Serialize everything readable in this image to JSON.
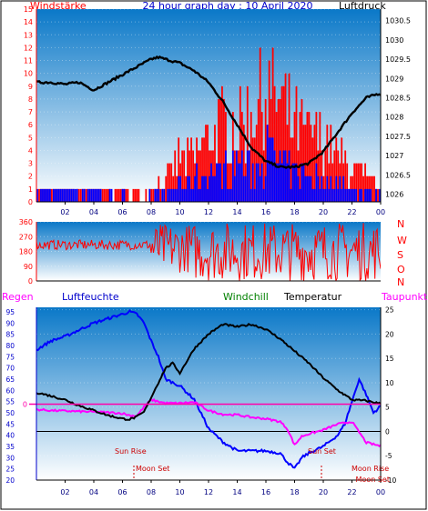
{
  "header": {
    "title": "24 hour graph day : 10 April 2020",
    "left_label": "Windstärke",
    "right_label": "Luftdruck"
  },
  "direction_labels": [
    "N",
    "W",
    "S",
    "O",
    "N"
  ],
  "legend": {
    "regen": "Regen",
    "luftfeuchte": "Luftfeuchte",
    "windchill": "Windchill",
    "temperatur": "Temperatur",
    "taupunkt": "Taupunkt"
  },
  "events": {
    "sun_rise": "Sun Rise",
    "sun_set": "Sun Set",
    "moon_set_1": "Moon Set",
    "moon_rise": "Moon Rise",
    "moon_set_2": "Moon Set"
  },
  "colors": {
    "wind_bar": "#ff0000",
    "gust_bar": "#0000ff",
    "pressure": "#000000",
    "humidity": "#0000ff",
    "temperature": "#000000",
    "dewpoint": "#ff00ff",
    "rain": "#ff0000",
    "bg_top": "#0a78c8",
    "bg_bottom": "#ffffff"
  },
  "chart_data": [
    {
      "type": "bar",
      "name": "wind-pressure",
      "x_ticks": [
        "02",
        "04",
        "06",
        "08",
        "10",
        "12",
        "14",
        "16",
        "18",
        "20",
        "22",
        "00"
      ],
      "xlim": [
        0,
        24
      ],
      "wind_ticks_left": [
        0,
        1,
        2,
        3,
        4,
        5,
        6,
        7,
        8,
        9,
        10,
        11,
        12,
        13,
        14,
        15
      ],
      "ylim_left": [
        0,
        15
      ],
      "pressure_ticks_right": [
        "1026",
        "1026.5",
        "1027",
        "1027.5",
        "1028",
        "1028.5",
        "1029",
        "1029.5",
        "1030",
        "1030.5"
      ],
      "ylim_right": [
        1025.8,
        1030.8
      ],
      "series": [
        {
          "name": "Luftdruck",
          "x": [
            0,
            1,
            2,
            3,
            4,
            5,
            6,
            7,
            8,
            8.5,
            9,
            10,
            11,
            12,
            13,
            14,
            15,
            16,
            17,
            18,
            19,
            20,
            21,
            22,
            23,
            23.8
          ],
          "values": [
            1028.9,
            1028.9,
            1028.85,
            1028.9,
            1028.7,
            1028.9,
            1029.1,
            1029.3,
            1029.5,
            1029.55,
            1029.5,
            1029.4,
            1029.2,
            1028.9,
            1028.4,
            1027.8,
            1027.2,
            1026.85,
            1026.7,
            1026.7,
            1026.8,
            1027.1,
            1027.6,
            1028.1,
            1028.5,
            1028.6
          ]
        }
      ]
    },
    {
      "type": "line",
      "name": "wind-direction",
      "x_ticks": [],
      "y_ticks": [
        0,
        90,
        180,
        270,
        360
      ],
      "ylim": [
        0,
        360
      ]
    },
    {
      "type": "line",
      "name": "humidity-temperature",
      "x_ticks": [
        "02",
        "04",
        "06",
        "08",
        "10",
        "12",
        "14",
        "16",
        "18",
        "20",
        "22",
        "00"
      ],
      "xlim": [
        0,
        24
      ],
      "humidity_ticks_left": [
        20,
        25,
        30,
        35,
        40,
        45,
        50,
        55,
        60,
        65,
        70,
        75,
        80,
        85,
        90,
        95
      ],
      "ylim_left": [
        20,
        97
      ],
      "temp_ticks_right": [
        -10,
        -5,
        0,
        5,
        10,
        15,
        20,
        25
      ],
      "ylim_right": [
        -10,
        25.5
      ],
      "series": [
        {
          "name": "Luftfeuchte",
          "x": [
            0,
            1,
            2,
            3,
            4,
            5,
            6,
            6.5,
            7,
            7.5,
            8,
            8.5,
            9,
            10,
            11,
            12,
            13,
            14,
            15,
            16,
            17,
            17.5,
            18,
            18.5,
            19,
            20,
            21,
            21.5,
            22,
            22.5,
            23,
            23.5,
            24
          ],
          "values": [
            78,
            82,
            84,
            87,
            90,
            92,
            94,
            95,
            94,
            90,
            82,
            75,
            65,
            62,
            56,
            43,
            37,
            33,
            33,
            33,
            32,
            28,
            25,
            30,
            32,
            35,
            40,
            45,
            55,
            65,
            58,
            50,
            53
          ]
        },
        {
          "name": "Temperatur",
          "x": [
            0,
            1,
            2,
            3,
            4,
            5,
            6,
            6.5,
            7,
            7.5,
            8,
            8.5,
            9,
            9.5,
            10,
            11,
            12,
            13,
            14,
            15,
            16,
            17,
            18,
            19,
            20,
            21,
            22,
            23,
            24
          ],
          "values": [
            8,
            7.3,
            6.5,
            5.3,
            4.3,
            3.3,
            2.6,
            2.5,
            3,
            4,
            7,
            10,
            13,
            14,
            12,
            17,
            20,
            22,
            21.5,
            22,
            21,
            19,
            16.5,
            14,
            11,
            8.5,
            6.5,
            6.3,
            5.7
          ]
        },
        {
          "name": "Taupunkt",
          "x": [
            0,
            1,
            2,
            3,
            4,
            5,
            6,
            6.5,
            7,
            7.5,
            8,
            9,
            10,
            11,
            12,
            13,
            14,
            15,
            16,
            17,
            17.5,
            18,
            18.5,
            19,
            20,
            21,
            22,
            23,
            24
          ],
          "values": [
            4.5,
            4.3,
            4.2,
            4.1,
            4,
            3.9,
            3.7,
            3.3,
            3.2,
            5,
            6.5,
            5.8,
            5.8,
            6,
            4.3,
            3.5,
            3.4,
            2.9,
            2.6,
            2,
            0.5,
            -2.8,
            -1,
            -0.5,
            0.3,
            1.5,
            2,
            -2.3,
            -3
          ]
        },
        {
          "name": "Regen",
          "x": [
            0,
            24
          ],
          "values": [
            0,
            0
          ]
        }
      ]
    }
  ]
}
